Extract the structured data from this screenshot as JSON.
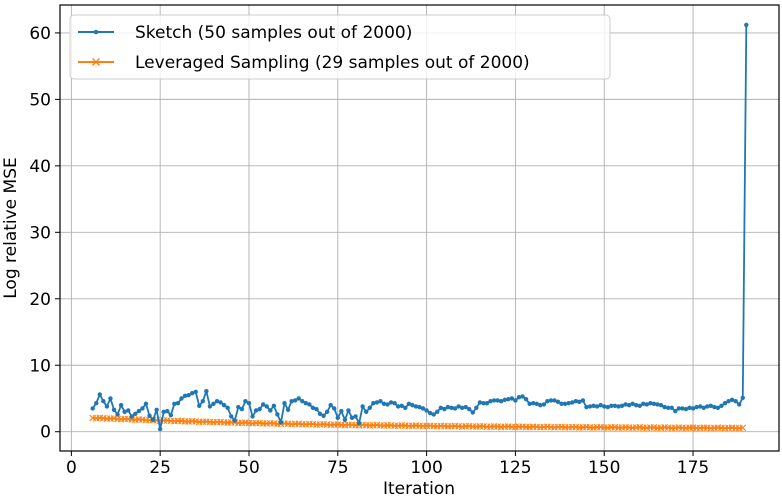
{
  "chart_data": {
    "type": "line",
    "title": "",
    "xlabel": "Iteration",
    "ylabel": "Log relative MSE",
    "xlim": [
      -3.2,
      199.2
    ],
    "ylim": [
      -2.9,
      64.2
    ],
    "xticks": [
      0,
      25,
      50,
      75,
      100,
      125,
      150,
      175
    ],
    "yticks": [
      0,
      10,
      20,
      30,
      40,
      50,
      60
    ],
    "grid": true,
    "legend_position": "upper left",
    "series": [
      {
        "name": "Sketch (50 samples out of 2000)",
        "color": "#1f77b4",
        "marker": "dot",
        "x_start": 6,
        "values": [
          3.5,
          4.3,
          5.6,
          4.6,
          3.8,
          5.0,
          3.3,
          2.6,
          4.0,
          3.0,
          3.2,
          2.3,
          2.7,
          3.1,
          3.5,
          4.2,
          2.4,
          1.8,
          3.3,
          0.4,
          3.0,
          3.1,
          2.5,
          4.2,
          4.3,
          5.0,
          5.4,
          5.5,
          5.8,
          6.0,
          3.9,
          4.6,
          6.1,
          3.8,
          4.2,
          4.6,
          4.4,
          4.0,
          3.6,
          2.3,
          1.7,
          3.7,
          3.4,
          4.6,
          4.3,
          2.3,
          3.2,
          3.4,
          4.1,
          3.8,
          3.2,
          3.9,
          2.6,
          1.4,
          4.3,
          3.3,
          4.6,
          4.7,
          5.0,
          4.6,
          4.3,
          4.1,
          3.6,
          3.4,
          2.7,
          2.4,
          3.0,
          4.0,
          3.5,
          2.1,
          3.1,
          1.8,
          3.2,
          2.1,
          2.3,
          1.3,
          3.8,
          3.0,
          3.6,
          4.3,
          4.4,
          4.6,
          4.2,
          4.1,
          4.4,
          4.3,
          3.8,
          3.9,
          3.6,
          4.2,
          4.0,
          3.8,
          3.7,
          3.5,
          3.2,
          2.8,
          2.6,
          3.0,
          3.6,
          3.4,
          3.7,
          3.6,
          3.5,
          3.8,
          3.6,
          3.7,
          3.4,
          2.9,
          3.6,
          4.4,
          4.3,
          4.3,
          4.6,
          4.7,
          4.7,
          4.6,
          4.8,
          4.9,
          5.0,
          4.7,
          5.2,
          5.3,
          4.9,
          4.2,
          4.3,
          4.2,
          4.0,
          4.1,
          4.6,
          4.7,
          4.7,
          4.5,
          4.2,
          4.2,
          4.3,
          4.4,
          4.6,
          4.5,
          4.7,
          3.7,
          3.8,
          3.9,
          3.8,
          4.0,
          3.8,
          3.7,
          3.9,
          3.9,
          3.8,
          3.9,
          4.1,
          4.0,
          4.2,
          4.0,
          3.9,
          4.2,
          4.1,
          4.3,
          4.2,
          4.1,
          4.0,
          3.7,
          3.6,
          3.6,
          3.1,
          3.5,
          3.5,
          3.4,
          3.6,
          3.5,
          3.7,
          3.8,
          3.6,
          3.8,
          3.9,
          3.7,
          3.6,
          3.9,
          4.3,
          4.6,
          4.8,
          4.6,
          4.1,
          5.1,
          61.2
        ]
      },
      {
        "name": "Leveraged Sampling (29 samples out of 2000)",
        "color": "#ff7f0e",
        "marker": "x",
        "x_start": 6,
        "x_end": 189,
        "start_value": 2.1,
        "end_value": 0.45,
        "values_note": "smoothly decreasing from ~2.1 to ~0.45"
      }
    ]
  },
  "legend": {
    "items": [
      {
        "label": "Sketch (50 samples out of 2000)",
        "color": "#1f77b4",
        "marker": "dot"
      },
      {
        "label": "Leveraged Sampling (29 samples out of 2000)",
        "color": "#ff7f0e",
        "marker": "x"
      }
    ]
  }
}
